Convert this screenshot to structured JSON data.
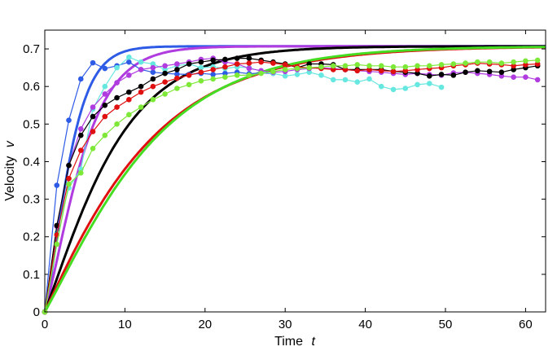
{
  "chart_data": {
    "type": "line",
    "xlabel": "Time",
    "xlabel_var": "t",
    "ylabel": "Velocity",
    "ylabel_var": "v",
    "xlim": [
      0,
      62.5
    ],
    "ylim": [
      0,
      0.75
    ],
    "xticks": [
      0,
      10,
      20,
      30,
      40,
      50,
      60
    ],
    "yticks": [
      0,
      0.1,
      0.2,
      0.3,
      0.4,
      0.5,
      0.6,
      0.7
    ],
    "ytick_labels": [
      "0",
      "0.1",
      "0.2",
      "0.3",
      "0.4",
      "0.5",
      "0.6",
      "0.7"
    ],
    "grid": false,
    "legend": "none",
    "smooth_series": [
      {
        "color": "#2e5be6",
        "vmax": 0.707,
        "tau": 7.0,
        "shape": 4
      },
      {
        "color": "#b03ce0",
        "vmax": 0.707,
        "tau": 9.0,
        "shape": 3
      },
      {
        "color": "#000000",
        "vmax": 0.707,
        "tau": 12.5,
        "shape": 2
      },
      {
        "color": "#e01010",
        "vmax": 0.707,
        "tau": 15.5,
        "shape": 1.5
      },
      {
        "color": "#44dd22",
        "vmax": 0.707,
        "tau": 18.5,
        "shape": 2
      }
    ],
    "marker_series": [
      {
        "color": "#2e5be6",
        "x": [
          0,
          1.5,
          3,
          4.5,
          6,
          7.5,
          9,
          10.5,
          12,
          13.5,
          15,
          16.5,
          18,
          19.5,
          21,
          22.5,
          24,
          25.5,
          27,
          28.5
        ],
        "y": [
          0,
          0.337,
          0.51,
          0.62,
          0.663,
          0.648,
          0.655,
          0.665,
          0.645,
          0.638,
          0.635,
          0.633,
          0.632,
          0.635,
          0.632,
          0.635,
          0.638,
          0.634,
          0.636,
          0.635
        ]
      },
      {
        "color": "#66e8e0",
        "x": [
          0,
          1.5,
          3,
          4.5,
          6,
          7.5,
          9,
          10.5,
          12,
          13.5,
          15,
          16.5,
          18,
          19.5,
          21,
          22.5,
          24,
          25.5,
          27,
          28.5,
          30,
          31.5,
          33,
          34.5,
          36,
          37.5,
          39,
          40.5,
          42,
          43.5,
          45,
          46.5,
          48,
          49.5
        ],
        "y": [
          0,
          0.21,
          0.33,
          0.38,
          0.54,
          0.6,
          0.65,
          0.678,
          0.665,
          0.66,
          0.645,
          0.655,
          0.66,
          0.65,
          0.652,
          0.648,
          0.652,
          0.65,
          0.64,
          0.635,
          0.628,
          0.632,
          0.638,
          0.63,
          0.618,
          0.618,
          0.612,
          0.62,
          0.6,
          0.592,
          0.595,
          0.605,
          0.608,
          0.598
        ]
      },
      {
        "color": "#b03ce0",
        "x": [
          0,
          1.5,
          3,
          4.5,
          6,
          7.5,
          9,
          10.5,
          12,
          13.5,
          15,
          16.5,
          18,
          19.5,
          21,
          22.5,
          24,
          25.5,
          27,
          28.5,
          30,
          31.5,
          33,
          34.5,
          36,
          37.5,
          39,
          40.5,
          42,
          43.5,
          45,
          46.5,
          48,
          49.5,
          51,
          52.5,
          54,
          55.5,
          57,
          58.5,
          60,
          61.5
        ],
        "y": [
          0,
          0.228,
          0.39,
          0.487,
          0.545,
          0.58,
          0.61,
          0.63,
          0.645,
          0.65,
          0.655,
          0.66,
          0.665,
          0.672,
          0.675,
          0.665,
          0.66,
          0.648,
          0.642,
          0.638,
          0.64,
          0.645,
          0.648,
          0.65,
          0.648,
          0.645,
          0.642,
          0.64,
          0.638,
          0.635,
          0.632,
          0.635,
          0.632,
          0.63,
          0.636,
          0.638,
          0.635,
          0.632,
          0.628,
          0.625,
          0.625,
          0.618
        ]
      },
      {
        "color": "#000000",
        "x": [
          0,
          1.5,
          3,
          4.5,
          6,
          7.5,
          9,
          10.5,
          12,
          13.5,
          15,
          16.5,
          18,
          19.5,
          21,
          22.5,
          24,
          25.5,
          27,
          28.5,
          30,
          31.5,
          33,
          34.5,
          36,
          37.5,
          39,
          40.5,
          42,
          43.5,
          45,
          46.5,
          48,
          49.5,
          51,
          52.5,
          54,
          55.5,
          57,
          58.5,
          60,
          61.5
        ],
        "y": [
          0,
          0.23,
          0.39,
          0.47,
          0.52,
          0.55,
          0.57,
          0.585,
          0.6,
          0.62,
          0.635,
          0.645,
          0.66,
          0.665,
          0.67,
          0.672,
          0.675,
          0.675,
          0.67,
          0.665,
          0.66,
          0.65,
          0.66,
          0.66,
          0.658,
          0.645,
          0.645,
          0.645,
          0.645,
          0.64,
          0.638,
          0.635,
          0.628,
          0.632,
          0.63,
          0.638,
          0.642,
          0.64,
          0.638,
          0.645,
          0.65,
          0.655
        ]
      },
      {
        "color": "#e01010",
        "x": [
          0,
          1.5,
          3,
          4.5,
          6,
          7.5,
          9,
          10.5,
          12,
          13.5,
          15,
          16.5,
          18,
          19.5,
          21,
          22.5,
          24,
          25.5,
          27,
          28.5,
          30,
          31.5,
          33,
          34.5,
          36,
          37.5,
          39,
          40.5,
          42,
          43.5,
          45,
          46.5,
          48,
          49.5,
          51,
          52.5,
          54,
          55.5,
          57,
          58.5,
          60,
          61.5
        ],
        "y": [
          0,
          0.205,
          0.355,
          0.43,
          0.48,
          0.52,
          0.545,
          0.565,
          0.585,
          0.6,
          0.612,
          0.622,
          0.63,
          0.638,
          0.645,
          0.652,
          0.66,
          0.662,
          0.665,
          0.662,
          0.658,
          0.652,
          0.65,
          0.648,
          0.645,
          0.645,
          0.642,
          0.645,
          0.642,
          0.64,
          0.642,
          0.645,
          0.648,
          0.65,
          0.655,
          0.658,
          0.662,
          0.66,
          0.658,
          0.655,
          0.658,
          0.66
        ]
      },
      {
        "color": "#7ee838",
        "x": [
          0,
          1.5,
          3,
          4.5,
          6,
          7.5,
          9,
          10.5,
          12,
          13.5,
          15,
          16.5,
          18,
          19.5,
          21,
          22.5,
          24,
          25.5,
          27,
          28.5,
          30,
          31.5,
          33,
          34.5,
          36,
          37.5,
          39,
          40.5,
          42,
          43.5,
          45,
          46.5,
          48,
          49.5,
          51,
          52.5,
          54,
          55.5,
          57,
          58.5,
          60,
          61.5
        ],
        "y": [
          0,
          0.18,
          0.34,
          0.37,
          0.435,
          0.47,
          0.5,
          0.525,
          0.545,
          0.565,
          0.58,
          0.595,
          0.605,
          0.615,
          0.62,
          0.625,
          0.63,
          0.63,
          0.635,
          0.64,
          0.645,
          0.648,
          0.65,
          0.652,
          0.655,
          0.655,
          0.658,
          0.655,
          0.655,
          0.652,
          0.652,
          0.655,
          0.655,
          0.658,
          0.66,
          0.662,
          0.665,
          0.665,
          0.662,
          0.665,
          0.668,
          0.67
        ]
      }
    ]
  }
}
